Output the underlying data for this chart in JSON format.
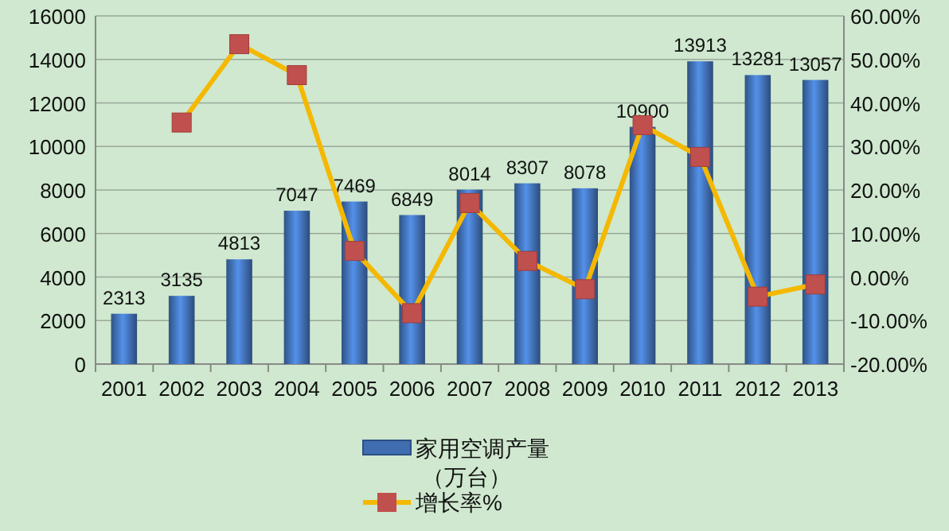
{
  "chart_data": {
    "type": "bar",
    "categories": [
      "2001",
      "2002",
      "2003",
      "2004",
      "2005",
      "2006",
      "2007",
      "2008",
      "2009",
      "2010",
      "2011",
      "2012",
      "2013"
    ],
    "series": [
      {
        "name": "家用空调产量（万台）",
        "color": "#3f6db0",
        "values": [
          2313,
          3135,
          4813,
          7047,
          7469,
          6849,
          8014,
          8307,
          8078,
          10900,
          13913,
          13281,
          13057
        ],
        "value_labels": [
          "2313",
          "3135",
          "4813",
          "7047",
          "7469",
          "6849",
          "8014",
          "8307",
          "8078",
          "10900",
          "13913",
          "13281",
          "13057"
        ]
      },
      {
        "name": "增长率%",
        "type": "line",
        "axis": "y2",
        "color": "#f5b800",
        "values": [
          null,
          35.5,
          53.5,
          46.4,
          6.0,
          -8.3,
          17.0,
          3.7,
          -2.8,
          34.9,
          27.6,
          -4.5,
          -1.7
        ]
      }
    ],
    "ylim": [
      0,
      16000
    ],
    "yticks": [
      0,
      2000,
      4000,
      6000,
      8000,
      10000,
      12000,
      14000,
      16000
    ],
    "y2lim": [
      -20,
      60
    ],
    "y2ticks": [
      {
        "value": -20,
        "label": "-20.00%"
      },
      {
        "value": -10,
        "label": "-10.00%"
      },
      {
        "value": 0,
        "label": "0.00%"
      },
      {
        "value": 10,
        "label": "10.00%"
      },
      {
        "value": 20,
        "label": "20.00%"
      },
      {
        "value": 30,
        "label": "30.00%"
      },
      {
        "value": 40,
        "label": "40.00%"
      },
      {
        "value": 50,
        "label": "50.00%"
      },
      {
        "value": 60,
        "label": "60.00%"
      }
    ],
    "grid": "y",
    "legend": "bottom",
    "marker": "square",
    "line_style": "solid"
  }
}
